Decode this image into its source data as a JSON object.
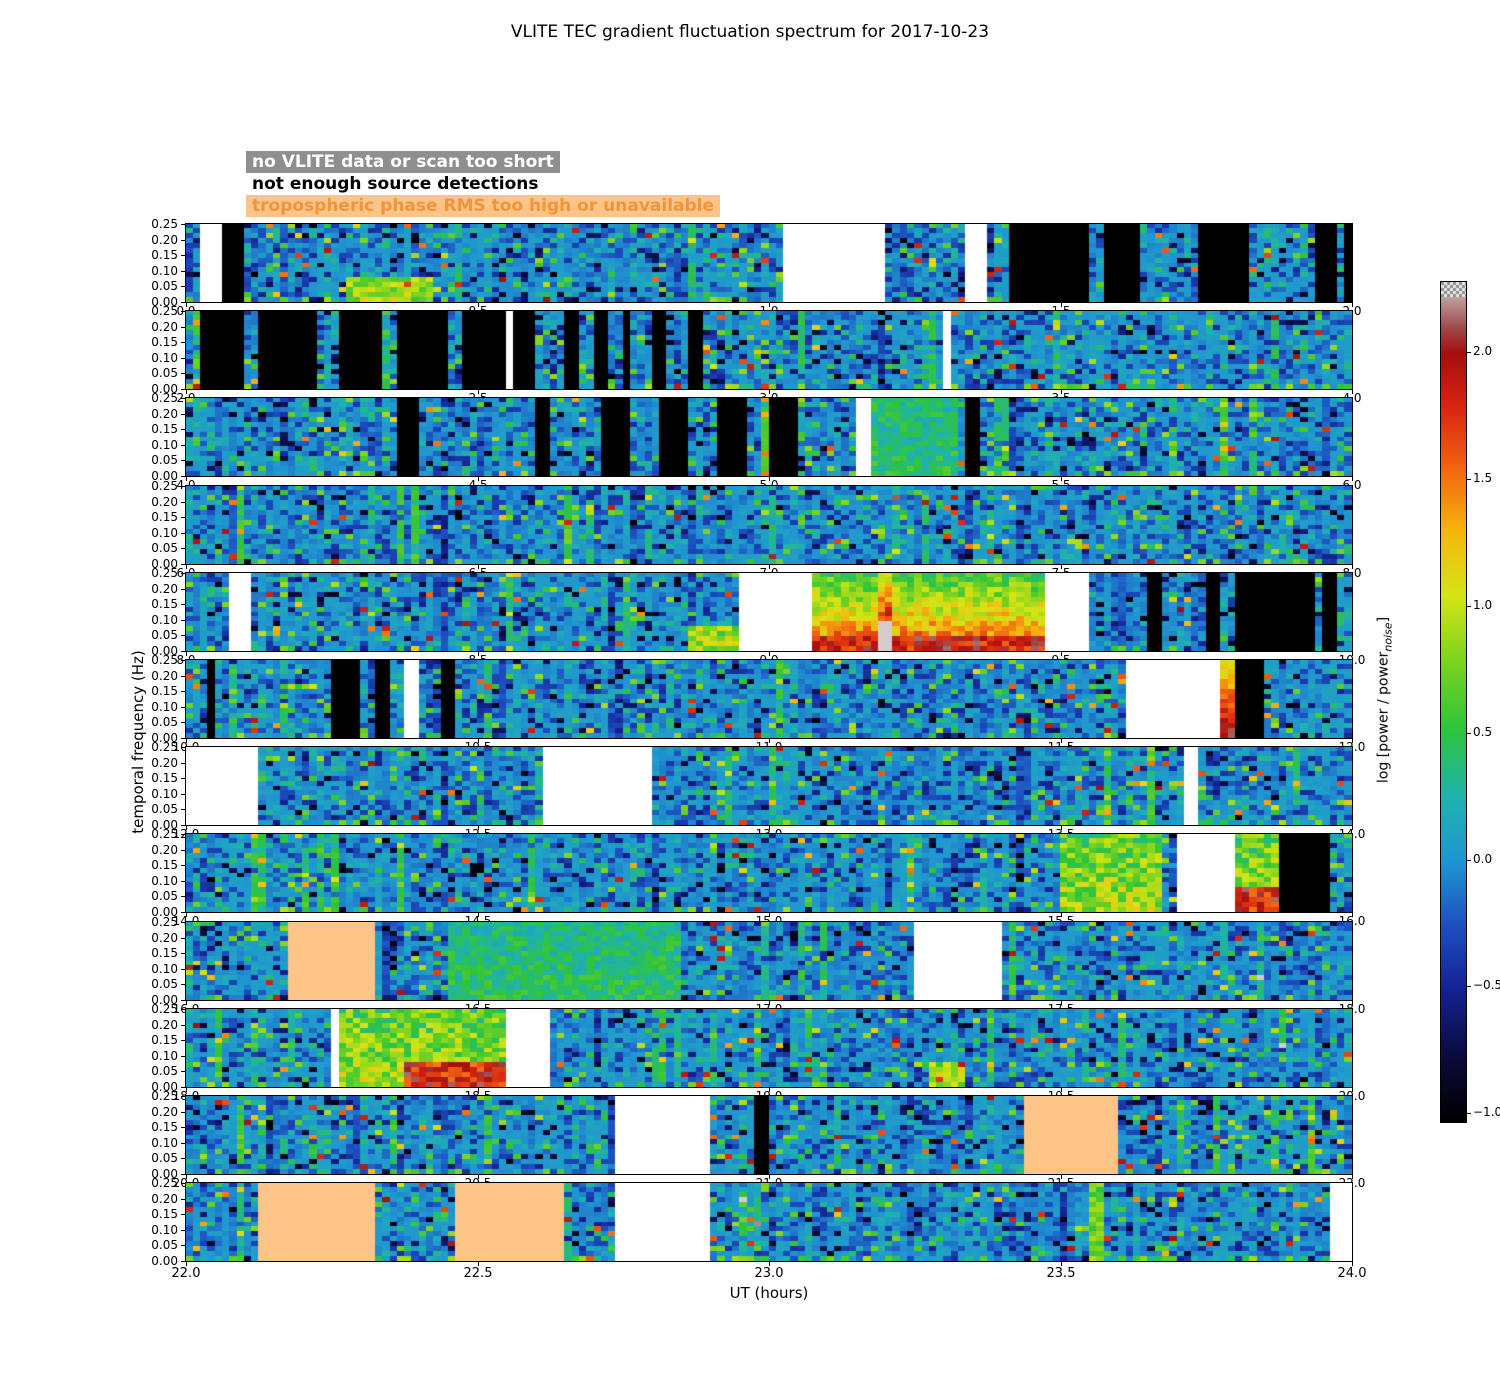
{
  "title": "VLITE TEC gradient fluctuation spectrum for 2017-10-23",
  "legend": {
    "items": [
      {
        "label": "no VLITE data or scan too short",
        "fg": "#ffffff",
        "bg": "#8f8f8f"
      },
      {
        "label": "not enough source detections",
        "fg": "#000000",
        "bg": "transparent"
      },
      {
        "label": "tropospheric phase RMS too high or unavailable",
        "fg": "#f0953e",
        "bg": "#fcc487"
      }
    ]
  },
  "axes": {
    "xlabel": "UT (hours)",
    "ylabel": "temporal frequency (Hz)",
    "yticks": [
      "0.25",
      "0.20",
      "0.15",
      "0.10",
      "0.05",
      "0.00"
    ],
    "colorbar": {
      "label": "log [power / power_noise]",
      "ticks": [
        "2.0",
        "1.5",
        "1.0",
        "0.5",
        "0.0",
        "−0.5",
        "−1.0"
      ],
      "tick_values": [
        2.0,
        1.5,
        1.0,
        0.5,
        0.0,
        -0.5,
        -1.0
      ]
    }
  },
  "chart_data": {
    "type": "heatmap",
    "title": "VLITE TEC gradient fluctuation spectrum for 2017-10-23",
    "xlabel": "UT (hours)",
    "ylabel": "temporal frequency (Hz)",
    "x_range_hours": [
      0,
      24
    ],
    "hours_per_panel": 2,
    "freq_range_hz": [
      0.0,
      0.25
    ],
    "value_scale": "log [power / power_noise]",
    "value_range": [
      -1.03,
      2.28
    ],
    "base_level": 0.0,
    "flag_colors": {
      "no_data": "#ffffff",
      "not_enough_sources": "#000000",
      "tropospheric": "#fcc487"
    },
    "colormap_stops": [
      [
        -1.03,
        "#000000"
      ],
      [
        -0.78,
        "#0a0a3a"
      ],
      [
        -0.52,
        "#14208e"
      ],
      [
        -0.26,
        "#1d4ec0"
      ],
      [
        0.0,
        "#2097d0"
      ],
      [
        0.26,
        "#1fb3ab"
      ],
      [
        0.52,
        "#2ec43c"
      ],
      [
        0.8,
        "#7fd41f"
      ],
      [
        1.05,
        "#d6e414"
      ],
      [
        1.3,
        "#f5b60e"
      ],
      [
        1.55,
        "#f26412"
      ],
      [
        1.8,
        "#d62310"
      ],
      [
        2.0,
        "#a50f0f"
      ],
      [
        2.1,
        "#9e4a4a"
      ],
      [
        2.2,
        "#b98f8f"
      ],
      [
        2.28,
        "#d4cccc"
      ]
    ],
    "panels": [
      {
        "ut_start": 0.0,
        "ut_end": 2.0,
        "xticks": [
          "0.0",
          "0.5",
          "1.0",
          "1.5",
          "2.0"
        ],
        "features": [
          {
            "type": "no_data",
            "t0": 0.02,
            "t1": 0.065
          },
          {
            "type": "not_enough_sources",
            "t0": 0.065,
            "t1": 0.105
          },
          {
            "type": "green_bottom",
            "t0": 0.27,
            "t1": 0.42
          },
          {
            "type": "no_data",
            "t0": 1.03,
            "t1": 1.195
          },
          {
            "type": "no_data",
            "t0": 1.335,
            "t1": 1.375
          },
          {
            "type": "not_enough_sources",
            "t0": 1.41,
            "t1": 1.555
          },
          {
            "type": "not_enough_sources",
            "t0": 1.57,
            "t1": 1.635
          },
          {
            "type": "not_enough_sources",
            "t0": 1.735,
            "t1": 1.825
          },
          {
            "type": "not_enough_sources",
            "t0": 1.935,
            "t1": 1.975
          },
          {
            "type": "not_enough_sources",
            "t0": 1.985,
            "t1": 2.0
          }
        ]
      },
      {
        "ut_start": 2.0,
        "ut_end": 4.0,
        "xticks": [
          "2.0",
          "2.5",
          "3.0",
          "3.5",
          "4.0"
        ],
        "features": [
          {
            "type": "not_enough_sources",
            "t0": 2.025,
            "t1": 2.105
          },
          {
            "type": "not_enough_sources",
            "t0": 2.13,
            "t1": 2.225
          },
          {
            "type": "not_enough_sources",
            "t0": 2.265,
            "t1": 2.335
          },
          {
            "type": "not_enough_sources",
            "t0": 2.365,
            "t1": 2.445
          },
          {
            "type": "not_enough_sources",
            "t0": 2.475,
            "t1": 2.55
          },
          {
            "type": "no_data",
            "t0": 2.551,
            "t1": 2.566
          },
          {
            "type": "not_enough_sources",
            "t0": 2.567,
            "t1": 2.6
          },
          {
            "type": "not_enough_sources",
            "t0": 2.655,
            "t1": 2.675
          },
          {
            "type": "not_enough_sources",
            "t0": 2.7,
            "t1": 2.72
          },
          {
            "type": "not_enough_sources",
            "t0": 2.745,
            "t1": 2.765
          },
          {
            "type": "not_enough_sources",
            "t0": 2.8,
            "t1": 2.825
          },
          {
            "type": "not_enough_sources",
            "t0": 2.86,
            "t1": 2.885
          },
          {
            "type": "no_data",
            "t0": 3.295,
            "t1": 3.315
          }
        ]
      },
      {
        "ut_start": 4.0,
        "ut_end": 6.0,
        "xticks": [
          "4.0",
          "4.5",
          "5.0",
          "5.5",
          "6.0"
        ],
        "features": [
          {
            "type": "not_enough_sources",
            "t0": 4.365,
            "t1": 4.395
          },
          {
            "type": "not_enough_sources",
            "t0": 4.595,
            "t1": 4.625
          },
          {
            "type": "not_enough_sources",
            "t0": 4.71,
            "t1": 4.765
          },
          {
            "type": "not_enough_sources",
            "t0": 4.81,
            "t1": 4.865
          },
          {
            "type": "not_enough_sources",
            "t0": 4.91,
            "t1": 4.965
          },
          {
            "type": "not_enough_sources",
            "t0": 5.0,
            "t1": 5.045
          },
          {
            "type": "no_data",
            "t0": 5.145,
            "t1": 5.175
          },
          {
            "type": "enhanced_mild",
            "t0": 5.18,
            "t1": 5.33
          },
          {
            "type": "not_enough_sources",
            "t0": 5.34,
            "t1": 5.365
          }
        ]
      },
      {
        "ut_start": 6.0,
        "ut_end": 8.0,
        "xticks": [
          "6.0",
          "6.5",
          "7.0",
          "7.5",
          "8.0"
        ],
        "features": []
      },
      {
        "ut_start": 8.0,
        "ut_end": 10.0,
        "xticks": [
          "8.0",
          "8.5",
          "9.0",
          "9.5",
          "10.0"
        ],
        "features": [
          {
            "type": "no_data",
            "t0": 8.075,
            "t1": 8.115
          },
          {
            "type": "green_bottom",
            "t0": 8.86,
            "t1": 8.945
          },
          {
            "type": "no_data",
            "t0": 8.945,
            "t1": 9.07
          },
          {
            "type": "storm",
            "t0": 9.07,
            "t1": 9.475,
            "peak_ut": 9.2
          },
          {
            "type": "no_data",
            "t0": 9.475,
            "t1": 9.55
          },
          {
            "type": "not_enough_sources",
            "t0": 9.655,
            "t1": 9.675
          },
          {
            "type": "not_enough_sources",
            "t0": 9.745,
            "t1": 9.775
          },
          {
            "type": "not_enough_sources",
            "t0": 9.805,
            "t1": 9.845
          },
          {
            "type": "not_enough_sources",
            "t0": 9.855,
            "t1": 9.94
          },
          {
            "type": "not_enough_sources",
            "t0": 9.955,
            "t1": 9.975
          }
        ]
      },
      {
        "ut_start": 10.0,
        "ut_end": 12.0,
        "xticks": [
          "10.0",
          "10.5",
          "11.0",
          "11.5",
          "12.0"
        ],
        "features": [
          {
            "type": "not_enough_sources",
            "t0": 10.035,
            "t1": 10.055
          },
          {
            "type": "not_enough_sources",
            "t0": 10.25,
            "t1": 10.3
          },
          {
            "type": "not_enough_sources",
            "t0": 10.325,
            "t1": 10.35
          },
          {
            "type": "no_data",
            "t0": 10.375,
            "t1": 10.405
          },
          {
            "type": "not_enough_sources",
            "t0": 10.435,
            "t1": 10.465
          },
          {
            "type": "no_data",
            "t0": 11.615,
            "t1": 11.77
          },
          {
            "type": "hot_column",
            "t0": 11.77,
            "t1": 11.805
          },
          {
            "type": "not_enough_sources",
            "t0": 11.805,
            "t1": 11.85
          }
        ]
      },
      {
        "ut_start": 12.0,
        "ut_end": 14.0,
        "xticks": [
          "12.0",
          "12.5",
          "13.0",
          "13.5",
          "14.0"
        ],
        "features": [
          {
            "type": "no_data",
            "t0": 12.0,
            "t1": 12.125
          },
          {
            "type": "no_data",
            "t0": 12.615,
            "t1": 12.795
          },
          {
            "type": "no_data",
            "t0": 13.715,
            "t1": 13.74
          }
        ]
      },
      {
        "ut_start": 14.0,
        "ut_end": 16.0,
        "xticks": [
          "14.0",
          "14.5",
          "15.0",
          "15.5",
          "16.0"
        ],
        "features": [
          {
            "type": "enhanced",
            "t0": 15.5,
            "t1": 15.67
          },
          {
            "type": "no_data",
            "t0": 15.695,
            "t1": 15.795
          },
          {
            "type": "enhanced",
            "t0": 15.795,
            "t1": 15.875
          },
          {
            "type": "red_bottom",
            "t0": 15.8,
            "t1": 15.875
          },
          {
            "type": "not_enough_sources",
            "t0": 15.875,
            "t1": 15.965
          }
        ]
      },
      {
        "ut_start": 16.0,
        "ut_end": 18.0,
        "xticks": [
          "16.0",
          "16.5",
          "17.0",
          "17.5",
          "18.0"
        ],
        "features": [
          {
            "type": "tropospheric",
            "t0": 16.17,
            "t1": 16.325
          },
          {
            "type": "enhanced_mild",
            "t0": 16.45,
            "t1": 16.85
          },
          {
            "type": "no_data",
            "t0": 17.25,
            "t1": 17.405
          }
        ]
      },
      {
        "ut_start": 18.0,
        "ut_end": 20.0,
        "xticks": [
          "18.0",
          "18.5",
          "19.0",
          "19.5",
          "20.0"
        ],
        "features": [
          {
            "type": "no_data",
            "t0": 18.245,
            "t1": 18.262
          },
          {
            "type": "enhanced",
            "t0": 18.262,
            "t1": 18.55
          },
          {
            "type": "red_bottom",
            "t0": 18.38,
            "t1": 18.55
          },
          {
            "type": "no_data",
            "t0": 18.55,
            "t1": 18.625
          },
          {
            "type": "green_bottom",
            "t0": 19.28,
            "t1": 19.34
          }
        ]
      },
      {
        "ut_start": 20.0,
        "ut_end": 22.0,
        "xticks": [
          "20.0",
          "20.5",
          "21.0",
          "21.5",
          "22.0"
        ],
        "features": [
          {
            "type": "no_data",
            "t0": 20.74,
            "t1": 20.895
          },
          {
            "type": "not_enough_sources",
            "t0": 20.975,
            "t1": 21.005
          },
          {
            "type": "tropospheric",
            "t0": 21.44,
            "t1": 21.605
          }
        ]
      },
      {
        "ut_start": 22.0,
        "ut_end": 24.0,
        "xticks": [
          "22.0",
          "22.5",
          "23.0",
          "23.5",
          "24.0"
        ],
        "features": [
          {
            "type": "tropospheric",
            "t0": 22.12,
            "t1": 22.33
          },
          {
            "type": "tropospheric",
            "t0": 22.465,
            "t1": 22.655
          },
          {
            "type": "no_data",
            "t0": 22.74,
            "t1": 22.895
          },
          {
            "type": "green_column",
            "t0": 23.55,
            "t1": 23.58
          },
          {
            "type": "no_data",
            "t0": 23.965,
            "t1": 24.0
          }
        ]
      }
    ]
  }
}
